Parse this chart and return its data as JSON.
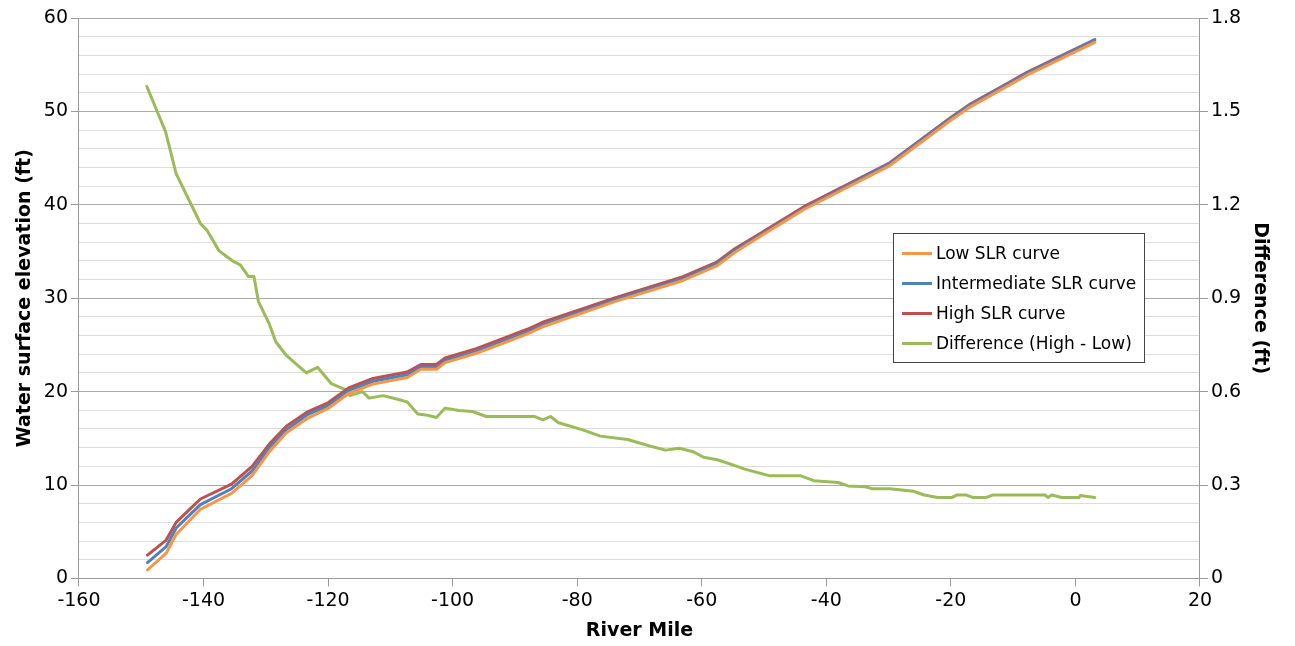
{
  "chart_data": {
    "type": "line",
    "xlabel": "River Mile",
    "ylabel": "Water surface elevation (ft)",
    "y2label": "Difference (ft)",
    "xlim": [
      -160,
      20
    ],
    "xticks": [
      -160,
      -140,
      -120,
      -100,
      -80,
      -60,
      -40,
      -20,
      0,
      20
    ],
    "ylim": [
      0,
      60
    ],
    "yticks": [
      0,
      {
        "value": 2,
        "label": null
      },
      {
        "value": 4,
        "label": null
      },
      {
        "value": 6,
        "label": null
      },
      {
        "value": 8,
        "label": null
      },
      10,
      {
        "value": 12,
        "label": null
      },
      {
        "value": 14,
        "label": null
      },
      {
        "value": 16,
        "label": null
      },
      {
        "value": 18,
        "label": null
      },
      20,
      {
        "value": 22,
        "label": null
      },
      {
        "value": 24,
        "label": null
      },
      {
        "value": 26,
        "label": null
      },
      {
        "value": 28,
        "label": null
      },
      30,
      {
        "value": 32,
        "label": null
      },
      {
        "value": 34,
        "label": null
      },
      {
        "value": 36,
        "label": null
      },
      {
        "value": 38,
        "label": null
      },
      40,
      {
        "value": 42,
        "label": null
      },
      {
        "value": 44,
        "label": null
      },
      {
        "value": 46,
        "label": null
      },
      {
        "value": 48,
        "label": null
      },
      50,
      {
        "value": 52,
        "label": null
      },
      {
        "value": 54,
        "label": null
      },
      {
        "value": 56,
        "label": null
      },
      {
        "value": 58,
        "label": null
      },
      60
    ],
    "y2lim": [
      0,
      1.8
    ],
    "y2ticks": [
      0,
      0.3,
      0.6,
      0.9,
      1.2,
      1.5,
      1.8
    ],
    "grid": "y",
    "legend": "right",
    "marker": "none",
    "line_style": "solid",
    "series": [
      {
        "name": "Low SLR curve",
        "color": "#f79646",
        "x": [
          -149,
          -146,
          -144.4,
          -140.5,
          -135.5,
          -132.2,
          -129.4,
          -126.7,
          -123.4,
          -120,
          -116.7,
          -112.8,
          -107.3,
          -105.1,
          -102.6,
          -101.2,
          -96.2,
          -87.9,
          -85.3,
          -74.1,
          -63,
          -57.5,
          -54.7,
          -49.2,
          -43.6,
          -29.8,
          -19.9,
          -17.1,
          -7.7,
          3.1
        ],
        "values": [
          0.9,
          2.7,
          4.7,
          7.4,
          9.1,
          11.0,
          13.6,
          15.6,
          17.1,
          18.2,
          19.8,
          20.8,
          21.5,
          22.4,
          22.4,
          23.1,
          24.1,
          26.2,
          27.0,
          29.6,
          31.9,
          33.5,
          34.9,
          37.2,
          39.5,
          44.2,
          49.1,
          50.4,
          53.9,
          57.4
        ]
      },
      {
        "name": "Intermediate SLR curve",
        "color": "#4f81bd",
        "x": [
          -149,
          -146,
          -144.4,
          -140.5,
          -135.5,
          -132.2,
          -129.4,
          -126.7,
          -123.4,
          -120,
          -116.7,
          -112.8,
          -107.3,
          -105.1,
          -102.6,
          -101.2,
          -96.2,
          -87.9,
          -85.3,
          -74.1,
          -63,
          -57.5,
          -54.7,
          -49.2,
          -43.6,
          -29.8,
          -19.9,
          -17.1,
          -7.7,
          3.1
        ],
        "values": [
          1.7,
          3.4,
          5.4,
          7.9,
          9.6,
          11.5,
          14.0,
          15.9,
          17.5,
          18.5,
          20.1,
          21.1,
          21.8,
          22.6,
          22.6,
          23.3,
          24.3,
          26.4,
          27.2,
          29.8,
          32.1,
          33.7,
          35.1,
          37.3,
          39.6,
          44.4,
          49.3,
          50.6,
          54.1,
          57.6
        ]
      },
      {
        "name": "High SLR curve",
        "color": "#c0504d",
        "x": [
          -149,
          -146,
          -144.4,
          -140.5,
          -135.5,
          -132.2,
          -129.4,
          -126.7,
          -123.4,
          -120,
          -116.7,
          -112.8,
          -107.3,
          -105.1,
          -102.6,
          -101.2,
          -96.2,
          -87.9,
          -85.3,
          -74.1,
          -63,
          -57.5,
          -54.7,
          -49.2,
          -43.6,
          -29.8,
          -19.9,
          -17.1,
          -7.7,
          3.1
        ],
        "values": [
          2.5,
          4.1,
          6.0,
          8.5,
          10.1,
          12.0,
          14.4,
          16.3,
          17.8,
          18.8,
          20.4,
          21.4,
          22.1,
          22.9,
          22.9,
          23.6,
          24.6,
          26.7,
          27.5,
          30.0,
          32.3,
          33.9,
          35.3,
          37.5,
          39.8,
          44.5,
          49.4,
          50.7,
          54.2,
          57.7
        ]
      },
      {
        "name": "Difference (High - Low)",
        "color": "#9bbb59",
        "axis": "y2",
        "x": [
          -149.1,
          -146.1,
          -144.4,
          -140.5,
          -139.4,
          -137.5,
          -135.2,
          -134.1,
          -132.8,
          -131.9,
          -131.2,
          -129.5,
          -128.4,
          -126.7,
          -123.5,
          -121.7,
          -119.5,
          -117.3,
          -116.5,
          -114.5,
          -113.4,
          -111.2,
          -109,
          -107.3,
          -105.6,
          -104,
          -102.6,
          -101.2,
          -99,
          -96.8,
          -94.6,
          -86.8,
          -85.5,
          -84.3,
          -83,
          -79.1,
          -76.3,
          -71.9,
          -68.5,
          -65.8,
          -63.6,
          -61.4,
          -59.7,
          -57.5,
          -54.2,
          -53.1,
          -49.2,
          -44.2,
          -42,
          -38.1,
          -36.5,
          -33.7,
          -32.6,
          -29.8,
          -26,
          -24.3,
          -22.1,
          -19.8,
          -19,
          -17.6,
          -16.5,
          -14.3,
          -13.2,
          -4.9,
          -4.4,
          -3.8,
          -2.2,
          0.6,
          0.8,
          3.1
        ],
        "values": [
          1.58,
          1.435,
          1.3,
          1.14,
          1.117,
          1.052,
          1.018,
          1.007,
          0.97,
          0.97,
          0.89,
          0.82,
          0.76,
          0.716,
          0.66,
          0.678,
          0.626,
          0.607,
          0.587,
          0.6,
          0.579,
          0.587,
          0.576,
          0.567,
          0.528,
          0.524,
          0.517,
          0.547,
          0.539,
          0.536,
          0.52,
          0.52,
          0.509,
          0.52,
          0.5,
          0.477,
          0.457,
          0.446,
          0.426,
          0.412,
          0.418,
          0.407,
          0.389,
          0.381,
          0.359,
          0.351,
          0.33,
          0.33,
          0.314,
          0.308,
          0.297,
          0.294,
          0.288,
          0.288,
          0.28,
          0.268,
          0.26,
          0.26,
          0.268,
          0.268,
          0.26,
          0.26,
          0.268,
          0.268,
          0.26,
          0.268,
          0.26,
          0.26,
          0.266,
          0.26
        ]
      }
    ]
  }
}
